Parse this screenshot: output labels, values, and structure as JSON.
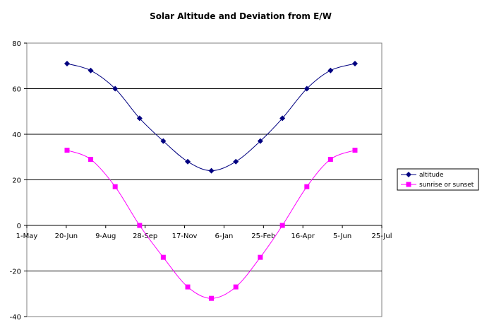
{
  "chart_data": {
    "type": "line",
    "title": "Solar Altitude and Deviation from E/W",
    "xlabel": "",
    "ylabel": "",
    "x_ticks": [
      "1-May",
      "20-Jun",
      "9-Aug",
      "28-Sep",
      "17-Nov",
      "6-Jan",
      "25-Feb",
      "16-Apr",
      "5-Jun",
      "25-Jul"
    ],
    "ylim": [
      -40,
      80
    ],
    "y_ticks": [
      -40,
      -20,
      0,
      20,
      40,
      60,
      80
    ],
    "grid": "horizontal",
    "legend_position": "right",
    "x": [
      "2021-06-21",
      "2021-07-21",
      "2021-08-21",
      "2021-09-21",
      "2021-10-21",
      "2021-11-21",
      "2021-12-21",
      "2022-01-21",
      "2022-02-21",
      "2022-03-21",
      "2022-04-21",
      "2022-05-21",
      "2022-06-21"
    ],
    "series": [
      {
        "name": "altitude",
        "color": "#000080",
        "marker": "diamond",
        "values": [
          71,
          68,
          60,
          47,
          37,
          28,
          24,
          28,
          37,
          47,
          60,
          68,
          71
        ]
      },
      {
        "name": "sunrise or sunset",
        "color": "#ff00ff",
        "marker": "square",
        "values": [
          33,
          29,
          17,
          0,
          -14,
          -27,
          -32,
          -27,
          -14,
          0,
          17,
          29,
          33
        ]
      }
    ]
  }
}
